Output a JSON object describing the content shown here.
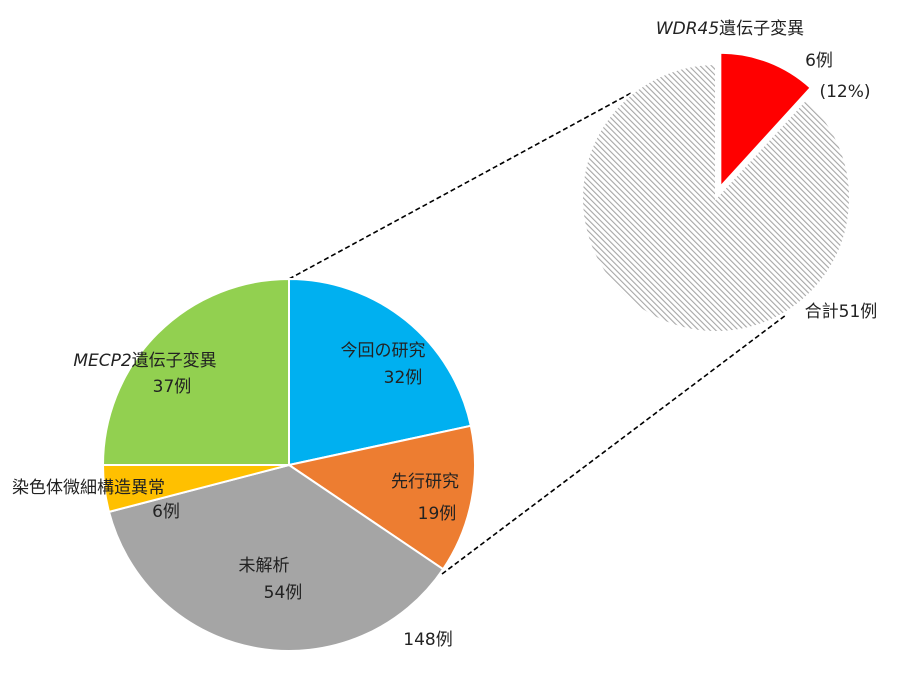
{
  "chart_data": [
    {
      "type": "pie",
      "total_label": "148例",
      "slices": [
        {
          "name": "今回の研究",
          "count_label": "32例",
          "value": 32,
          "color": "#00b0f0"
        },
        {
          "name": "先行研究",
          "count_label": "19例",
          "value": 19,
          "color": "#ed7d31"
        },
        {
          "name": "未解析",
          "count_label": "54例",
          "value": 54,
          "color": "#a5a5a5"
        },
        {
          "name": "染色体微細構造異常",
          "count_label": "6例",
          "value": 6,
          "color": "#ffc000"
        },
        {
          "name_italic": "MECP2",
          "name_rest": "遺伝子変異",
          "count_label": "37例",
          "value": 37,
          "color": "#92d050"
        }
      ]
    },
    {
      "type": "pie",
      "total_label": "合計51例",
      "slices": [
        {
          "name_italic": "WDR45",
          "name_rest": "遺伝子変異",
          "count_label": "6例",
          "percent_label": "(12%)",
          "value": 6,
          "color": "#ff0000"
        },
        {
          "value": 45,
          "pattern": "diagonal-hatch",
          "color": "#b0b0b0"
        }
      ]
    }
  ]
}
